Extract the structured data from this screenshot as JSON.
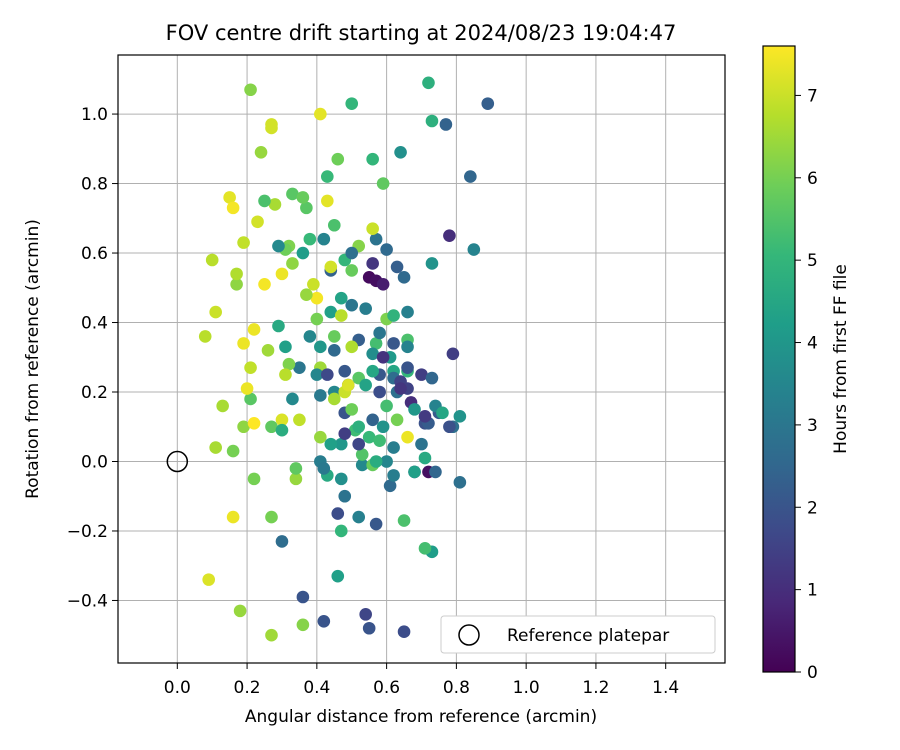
{
  "chart_data": {
    "type": "scatter",
    "title": "FOV centre drift starting at 2024/08/23 19:04:47",
    "xlabel": "Angular distance from reference (arcmin)",
    "ylabel": "Rotation from reference (arcmin)",
    "xlim": [
      -0.17,
      1.57
    ],
    "ylim": [
      -0.58,
      1.17
    ],
    "x_ticks": [
      0.0,
      0.2,
      0.4,
      0.6,
      0.8,
      1.0,
      1.2,
      1.4
    ],
    "x_tick_labels": [
      "0.0",
      "0.2",
      "0.4",
      "0.6",
      "0.8",
      "1.0",
      "1.2",
      "1.4"
    ],
    "y_ticks": [
      -0.4,
      -0.2,
      0.0,
      0.2,
      0.4,
      0.6,
      0.8,
      1.0
    ],
    "y_tick_labels": [
      "−0.4",
      "−0.2",
      "0.0",
      "0.2",
      "0.4",
      "0.6",
      "0.8",
      "1.0"
    ],
    "grid": true,
    "legend": {
      "placement": "lower-right",
      "entries": [
        "Reference platepar"
      ]
    },
    "colormap": "viridis",
    "colorbar": {
      "label": "Hours from first FF file",
      "range": [
        0,
        7.6
      ],
      "ticks": [
        0,
        1,
        2,
        3,
        4,
        5,
        6,
        7
      ],
      "tick_labels": [
        "0",
        "1",
        "2",
        "3",
        "4",
        "5",
        "6",
        "7"
      ],
      "stops": [
        "#440154",
        "#482878",
        "#3e4989",
        "#31688e",
        "#26828e",
        "#1f9e89",
        "#35b779",
        "#6ece58",
        "#b5de2b",
        "#fde725"
      ]
    },
    "reference_point": {
      "x": 0.0,
      "y": 0.0
    },
    "points": [
      {
        "x": 0.55,
        "y": 0.53,
        "h": 0.2
      },
      {
        "x": 0.57,
        "y": 0.52,
        "h": 0.3
      },
      {
        "x": 0.72,
        "y": -0.03,
        "h": 0.3
      },
      {
        "x": 0.59,
        "y": 0.51,
        "h": 0.6
      },
      {
        "x": 0.78,
        "y": 0.65,
        "h": 1.0
      },
      {
        "x": 0.67,
        "y": 0.17,
        "h": 1.0
      },
      {
        "x": 0.56,
        "y": 0.57,
        "h": 1.2
      },
      {
        "x": 0.79,
        "y": 0.31,
        "h": 1.4
      },
      {
        "x": 0.54,
        "y": -0.44,
        "h": 1.6
      },
      {
        "x": 0.66,
        "y": 0.21,
        "h": 1.5
      },
      {
        "x": 0.68,
        "y": -0.03,
        "h": 1.6
      },
      {
        "x": 0.7,
        "y": 0.25,
        "h": 1.4
      },
      {
        "x": 0.65,
        "y": -0.49,
        "h": 1.8
      },
      {
        "x": 0.46,
        "y": -0.15,
        "h": 1.8
      },
      {
        "x": 0.36,
        "y": -0.39,
        "h": 2.0
      },
      {
        "x": 0.55,
        "y": -0.48,
        "h": 2.0
      },
      {
        "x": 0.42,
        "y": -0.46,
        "h": 2.0
      },
      {
        "x": 0.57,
        "y": -0.18,
        "h": 2.1
      },
      {
        "x": 0.71,
        "y": 0.11,
        "h": 1.9
      },
      {
        "x": 0.75,
        "y": 0.14,
        "h": 2.2
      },
      {
        "x": 0.48,
        "y": 0.14,
        "h": 2.0
      },
      {
        "x": 0.62,
        "y": 0.34,
        "h": 2.1
      },
      {
        "x": 0.49,
        "y": 0.22,
        "h": 2.0
      },
      {
        "x": 0.77,
        "y": 0.97,
        "h": 2.4
      },
      {
        "x": 0.84,
        "y": 0.82,
        "h": 2.5
      },
      {
        "x": 0.89,
        "y": 1.03,
        "h": 2.3
      },
      {
        "x": 0.58,
        "y": 0.25,
        "h": 2.1
      },
      {
        "x": 0.52,
        "y": 0.35,
        "h": 2.3
      },
      {
        "x": 0.44,
        "y": 0.55,
        "h": 2.4
      },
      {
        "x": 0.65,
        "y": 0.53,
        "h": 2.6
      },
      {
        "x": 0.6,
        "y": 0.61,
        "h": 2.6
      },
      {
        "x": 0.73,
        "y": 0.24,
        "h": 2.5
      },
      {
        "x": 0.61,
        "y": -0.07,
        "h": 2.6
      },
      {
        "x": 0.3,
        "y": -0.23,
        "h": 2.7
      },
      {
        "x": 0.48,
        "y": -0.1,
        "h": 2.9
      },
      {
        "x": 0.79,
        "y": 0.1,
        "h": 2.8
      },
      {
        "x": 0.81,
        "y": -0.06,
        "h": 2.8
      },
      {
        "x": 0.63,
        "y": 0.2,
        "h": 2.8
      },
      {
        "x": 0.57,
        "y": 0.64,
        "h": 2.9
      },
      {
        "x": 0.35,
        "y": 0.27,
        "h": 3.0
      },
      {
        "x": 0.5,
        "y": 0.45,
        "h": 3.0
      },
      {
        "x": 0.54,
        "y": 0.44,
        "h": 3.2
      },
      {
        "x": 0.41,
        "y": 0.19,
        "h": 3.1
      },
      {
        "x": 0.41,
        "y": 0.0,
        "h": 3.2
      },
      {
        "x": 0.62,
        "y": -0.04,
        "h": 3.2
      },
      {
        "x": 0.66,
        "y": 0.43,
        "h": 3.3
      },
      {
        "x": 0.74,
        "y": 0.16,
        "h": 3.4
      },
      {
        "x": 0.85,
        "y": 0.61,
        "h": 3.4
      },
      {
        "x": 0.42,
        "y": 0.64,
        "h": 3.4
      },
      {
        "x": 0.45,
        "y": 0.2,
        "h": 3.5
      },
      {
        "x": 0.38,
        "y": 0.36,
        "h": 3.5
      },
      {
        "x": 0.6,
        "y": 0.0,
        "h": 3.5
      },
      {
        "x": 0.53,
        "y": -0.01,
        "h": 3.6
      },
      {
        "x": 0.33,
        "y": 0.18,
        "h": 3.6
      },
      {
        "x": 0.64,
        "y": 0.89,
        "h": 3.8
      },
      {
        "x": 0.73,
        "y": 0.57,
        "h": 3.9
      },
      {
        "x": 0.59,
        "y": 0.1,
        "h": 3.9
      },
      {
        "x": 0.47,
        "y": 0.05,
        "h": 4.0
      },
      {
        "x": 0.41,
        "y": 0.33,
        "h": 4.0
      },
      {
        "x": 0.73,
        "y": -0.26,
        "h": 4.2
      },
      {
        "x": 0.46,
        "y": -0.33,
        "h": 4.3
      },
      {
        "x": 0.31,
        "y": 0.33,
        "h": 4.3
      },
      {
        "x": 0.47,
        "y": 0.47,
        "h": 4.4
      },
      {
        "x": 0.56,
        "y": 0.26,
        "h": 4.5
      },
      {
        "x": 0.44,
        "y": 0.43,
        "h": 4.3
      },
      {
        "x": 0.62,
        "y": 0.26,
        "h": 4.5
      },
      {
        "x": 0.68,
        "y": -0.03,
        "h": 4.3
      },
      {
        "x": 0.43,
        "y": -0.04,
        "h": 4.6
      },
      {
        "x": 0.29,
        "y": 0.39,
        "h": 4.6
      },
      {
        "x": 0.73,
        "y": 0.98,
        "h": 4.8
      },
      {
        "x": 0.72,
        "y": 1.09,
        "h": 4.8
      },
      {
        "x": 0.5,
        "y": 1.03,
        "h": 5.0
      },
      {
        "x": 0.56,
        "y": 0.87,
        "h": 5.0
      },
      {
        "x": 0.43,
        "y": 0.82,
        "h": 5.1
      },
      {
        "x": 0.47,
        "y": -0.2,
        "h": 5.0
      },
      {
        "x": 0.55,
        "y": 0.07,
        "h": 5.1
      },
      {
        "x": 0.71,
        "y": -0.25,
        "h": 5.3
      },
      {
        "x": 0.51,
        "y": 0.09,
        "h": 5.2
      },
      {
        "x": 0.57,
        "y": 0.34,
        "h": 5.3
      },
      {
        "x": 0.66,
        "y": 0.35,
        "h": 5.4
      },
      {
        "x": 0.45,
        "y": 0.68,
        "h": 5.4
      },
      {
        "x": 0.65,
        "y": -0.17,
        "h": 5.4
      },
      {
        "x": 0.37,
        "y": 0.73,
        "h": 5.6
      },
      {
        "x": 0.21,
        "y": 0.18,
        "h": 5.6
      },
      {
        "x": 0.33,
        "y": 0.77,
        "h": 5.6
      },
      {
        "x": 0.59,
        "y": 0.8,
        "h": 5.7
      },
      {
        "x": 0.27,
        "y": 0.1,
        "h": 5.7
      },
      {
        "x": 0.56,
        "y": -0.01,
        "h": 5.8
      },
      {
        "x": 0.36,
        "y": 0.76,
        "h": 5.8
      },
      {
        "x": 0.46,
        "y": 0.87,
        "h": 5.9
      },
      {
        "x": 0.5,
        "y": 0.15,
        "h": 5.9
      },
      {
        "x": 0.22,
        "y": -0.05,
        "h": 6.0
      },
      {
        "x": 0.16,
        "y": 0.03,
        "h": 6.0
      },
      {
        "x": 0.27,
        "y": -0.16,
        "h": 6.0
      },
      {
        "x": 0.32,
        "y": 0.28,
        "h": 6.1
      },
      {
        "x": 0.36,
        "y": -0.47,
        "h": 6.2
      },
      {
        "x": 0.21,
        "y": 1.07,
        "h": 6.2
      },
      {
        "x": 0.32,
        "y": 0.62,
        "h": 6.1
      },
      {
        "x": 0.17,
        "y": 0.51,
        "h": 6.3
      },
      {
        "x": 0.19,
        "y": 0.1,
        "h": 6.3
      },
      {
        "x": 0.18,
        "y": -0.43,
        "h": 6.4
      },
      {
        "x": 0.41,
        "y": 0.07,
        "h": 6.4
      },
      {
        "x": 0.24,
        "y": 0.89,
        "h": 6.4
      },
      {
        "x": 0.34,
        "y": -0.05,
        "h": 6.4
      },
      {
        "x": 0.27,
        "y": -0.5,
        "h": 6.5
      },
      {
        "x": 0.41,
        "y": 0.27,
        "h": 6.5
      },
      {
        "x": 0.26,
        "y": 0.32,
        "h": 6.5
      },
      {
        "x": 0.11,
        "y": 0.04,
        "h": 6.6
      },
      {
        "x": 0.13,
        "y": 0.16,
        "h": 6.6
      },
      {
        "x": 0.45,
        "y": 0.18,
        "h": 6.6
      },
      {
        "x": 0.17,
        "y": 0.54,
        "h": 6.7
      },
      {
        "x": 0.08,
        "y": 0.36,
        "h": 6.8
      },
      {
        "x": 0.31,
        "y": 0.25,
        "h": 6.8
      },
      {
        "x": 0.1,
        "y": 0.58,
        "h": 6.8
      },
      {
        "x": 0.21,
        "y": 0.27,
        "h": 6.9
      },
      {
        "x": 0.19,
        "y": 0.63,
        "h": 6.9
      },
      {
        "x": 0.11,
        "y": 0.43,
        "h": 7.0
      },
      {
        "x": 0.56,
        "y": 0.67,
        "h": 7.0
      },
      {
        "x": 0.48,
        "y": 0.2,
        "h": 7.0
      },
      {
        "x": 0.27,
        "y": 0.96,
        "h": 7.1
      },
      {
        "x": 0.27,
        "y": 0.97,
        "h": 7.1
      },
      {
        "x": 0.23,
        "y": 0.69,
        "h": 7.1
      },
      {
        "x": 0.49,
        "y": 0.22,
        "h": 7.2
      },
      {
        "x": 0.09,
        "y": -0.34,
        "h": 7.2
      },
      {
        "x": 0.41,
        "y": 1.0,
        "h": 7.3
      },
      {
        "x": 0.15,
        "y": 0.76,
        "h": 7.3
      },
      {
        "x": 0.16,
        "y": -0.16,
        "h": 7.4
      },
      {
        "x": 0.19,
        "y": 0.34,
        "h": 7.4
      },
      {
        "x": 0.3,
        "y": 0.54,
        "h": 7.4
      },
      {
        "x": 0.16,
        "y": 0.73,
        "h": 7.5
      },
      {
        "x": 0.25,
        "y": 0.51,
        "h": 7.5
      },
      {
        "x": 0.4,
        "y": 0.47,
        "h": 7.5
      },
      {
        "x": 0.66,
        "y": 0.07,
        "h": 7.4
      },
      {
        "x": 0.43,
        "y": 0.75,
        "h": 7.3
      },
      {
        "x": 0.22,
        "y": 0.11,
        "h": 7.6
      },
      {
        "x": 0.2,
        "y": 0.21,
        "h": 7.4
      },
      {
        "x": 0.22,
        "y": 0.38,
        "h": 7.4
      },
      {
        "x": 0.3,
        "y": 0.12,
        "h": 7.2
      },
      {
        "x": 0.44,
        "y": 0.56,
        "h": 7.1
      },
      {
        "x": 0.39,
        "y": 0.51,
        "h": 7.0
      },
      {
        "x": 0.35,
        "y": 0.12,
        "h": 6.9
      },
      {
        "x": 0.47,
        "y": 0.42,
        "h": 6.8
      },
      {
        "x": 0.5,
        "y": 0.33,
        "h": 6.7
      },
      {
        "x": 0.28,
        "y": 0.74,
        "h": 6.6
      },
      {
        "x": 0.37,
        "y": 0.48,
        "h": 6.4
      },
      {
        "x": 0.33,
        "y": 0.57,
        "h": 6.3
      },
      {
        "x": 0.52,
        "y": 0.62,
        "h": 6.2
      },
      {
        "x": 0.6,
        "y": 0.41,
        "h": 6.1
      },
      {
        "x": 0.63,
        "y": 0.12,
        "h": 6.0
      },
      {
        "x": 0.4,
        "y": 0.41,
        "h": 6.0
      },
      {
        "x": 0.31,
        "y": 0.61,
        "h": 5.9
      },
      {
        "x": 0.45,
        "y": 0.36,
        "h": 5.8
      },
      {
        "x": 0.5,
        "y": 0.55,
        "h": 5.8
      },
      {
        "x": 0.34,
        "y": -0.02,
        "h": 5.7
      },
      {
        "x": 0.52,
        "y": 0.24,
        "h": 5.6
      },
      {
        "x": 0.53,
        "y": 0.02,
        "h": 5.5
      },
      {
        "x": 0.25,
        "y": 0.75,
        "h": 5.4
      },
      {
        "x": 0.6,
        "y": 0.16,
        "h": 5.3
      },
      {
        "x": 0.58,
        "y": 0.06,
        "h": 5.2
      },
      {
        "x": 0.38,
        "y": 0.64,
        "h": 5.1
      },
      {
        "x": 0.48,
        "y": 0.58,
        "h": 5.0
      },
      {
        "x": 0.66,
        "y": 0.26,
        "h": 5.0
      },
      {
        "x": 0.62,
        "y": 0.42,
        "h": 4.9
      },
      {
        "x": 0.52,
        "y": 0.1,
        "h": 4.8
      },
      {
        "x": 0.3,
        "y": 0.09,
        "h": 4.7
      },
      {
        "x": 0.57,
        "y": 0.0,
        "h": 4.7
      },
      {
        "x": 0.71,
        "y": 0.01,
        "h": 4.6
      },
      {
        "x": 0.76,
        "y": 0.14,
        "h": 4.5
      },
      {
        "x": 0.54,
        "y": 0.22,
        "h": 4.4
      },
      {
        "x": 0.44,
        "y": 0.05,
        "h": 4.3
      },
      {
        "x": 0.36,
        "y": 0.6,
        "h": 4.2
      },
      {
        "x": 0.61,
        "y": 0.3,
        "h": 4.1
      },
      {
        "x": 0.68,
        "y": 0.15,
        "h": 4.0
      },
      {
        "x": 0.81,
        "y": 0.13,
        "h": 3.9
      },
      {
        "x": 0.47,
        "y": -0.05,
        "h": 3.8
      },
      {
        "x": 0.56,
        "y": 0.31,
        "h": 3.7
      },
      {
        "x": 0.29,
        "y": 0.62,
        "h": 3.6
      },
      {
        "x": 0.4,
        "y": 0.25,
        "h": 3.5
      },
      {
        "x": 0.66,
        "y": 0.33,
        "h": 3.4
      },
      {
        "x": 0.52,
        "y": -0.16,
        "h": 3.3
      },
      {
        "x": 0.62,
        "y": 0.04,
        "h": 3.2
      },
      {
        "x": 0.42,
        "y": -0.02,
        "h": 3.1
      },
      {
        "x": 0.58,
        "y": 0.37,
        "h": 3.0
      },
      {
        "x": 0.7,
        "y": 0.05,
        "h": 2.9
      },
      {
        "x": 0.5,
        "y": 0.6,
        "h": 2.8
      },
      {
        "x": 0.62,
        "y": 0.24,
        "h": 2.7
      },
      {
        "x": 0.45,
        "y": 0.32,
        "h": 2.6
      },
      {
        "x": 0.74,
        "y": -0.03,
        "h": 2.5
      },
      {
        "x": 0.56,
        "y": 0.12,
        "h": 2.4
      },
      {
        "x": 0.63,
        "y": 0.56,
        "h": 2.3
      },
      {
        "x": 0.72,
        "y": 0.11,
        "h": 2.2
      },
      {
        "x": 0.48,
        "y": 0.26,
        "h": 2.1
      },
      {
        "x": 0.66,
        "y": 0.27,
        "h": 2.0
      },
      {
        "x": 0.78,
        "y": 0.1,
        "h": 1.9
      },
      {
        "x": 0.58,
        "y": 0.2,
        "h": 1.8
      },
      {
        "x": 0.43,
        "y": 0.25,
        "h": 1.7
      },
      {
        "x": 0.52,
        "y": 0.05,
        "h": 1.6
      },
      {
        "x": 0.64,
        "y": 0.23,
        "h": 1.5
      },
      {
        "x": 0.48,
        "y": 0.08,
        "h": 1.4
      },
      {
        "x": 0.71,
        "y": 0.13,
        "h": 1.3
      },
      {
        "x": 0.64,
        "y": 0.21,
        "h": 1.2
      },
      {
        "x": 0.59,
        "y": 0.3,
        "h": 1.1
      }
    ]
  }
}
